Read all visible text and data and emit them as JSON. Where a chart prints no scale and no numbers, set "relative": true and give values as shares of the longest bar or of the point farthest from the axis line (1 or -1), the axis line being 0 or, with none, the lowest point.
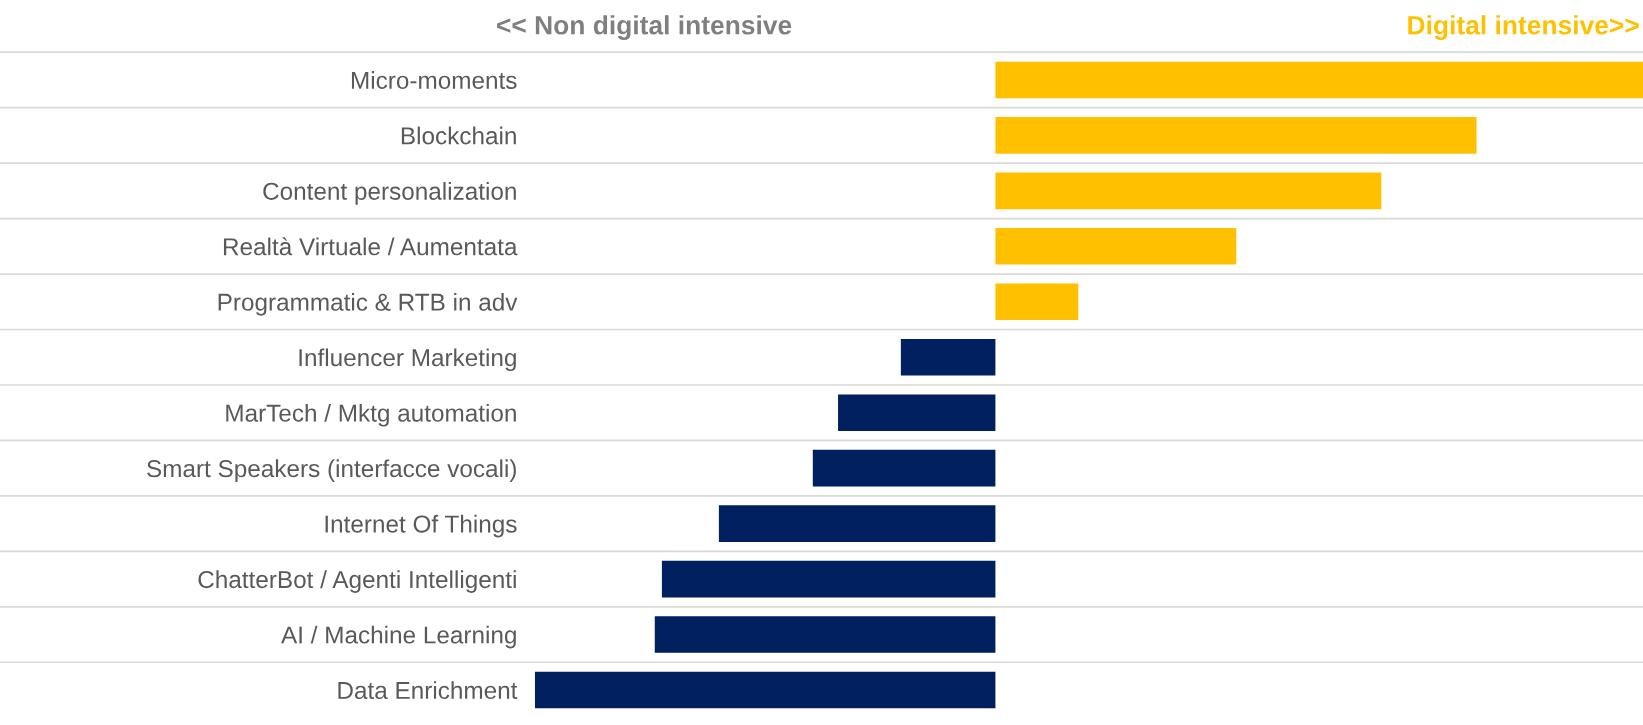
{
  "chart_data": {
    "type": "bar",
    "orientation": "horizontal",
    "relative": true,
    "grid": "y",
    "tick_labels": "y",
    "categories": [
      "Micro-moments",
      "Blockchain",
      "Content personalization",
      "Realtà Virtuale / Aumentata",
      "Programmatic & RTB in adv",
      "Influencer Marketing",
      "MarTech / Mktg automation",
      "Smart Speakers (interfacce vocali)",
      "Internet Of Things",
      "ChatterBot / Agenti Intelligenti",
      "AI / Machine Learning",
      "Data Enrichment"
    ],
    "values": [
      1,
      0.743,
      0.596,
      0.372,
      0.128,
      -0.146,
      -0.243,
      -0.282,
      -0.427,
      -0.515,
      -0.526,
      -0.711
    ],
    "colors": [
      "#ffc000",
      "#ffc000",
      "#ffc000",
      "#ffc000",
      "#ffc000",
      "#002060",
      "#002060",
      "#002060",
      "#002060",
      "#002060",
      "#002060",
      "#002060"
    ],
    "annotations": [
      "<< Non digital intensive",
      "Digital intensive>>"
    ]
  }
}
